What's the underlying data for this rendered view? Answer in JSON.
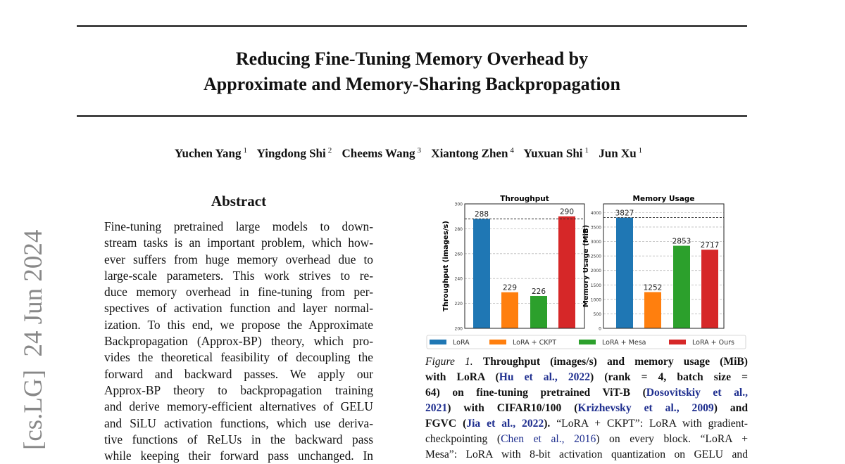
{
  "title_lines": [
    "Reducing Fine-Tuning Memory Overhead by",
    "Approximate and Memory-Sharing Backpropagation"
  ],
  "authors": [
    {
      "name": "Yuchen Yang",
      "aff": "1"
    },
    {
      "name": "Yingdong Shi",
      "aff": "2"
    },
    {
      "name": "Cheems Wang",
      "aff": "3"
    },
    {
      "name": "Xiantong Zhen",
      "aff": "4"
    },
    {
      "name": "Yuxuan Shi",
      "aff": "1"
    },
    {
      "name": "Jun Xu",
      "aff": "1"
    }
  ],
  "arxiv_stamp": "[cs.LG]  24 Jun 2024",
  "abstract": {
    "heading": "Abstract",
    "lines": [
      "Fine-tuning pretrained large models to down-",
      "stream tasks is an important problem, which how-",
      "ever suffers from huge memory overhead due to",
      "large-scale parameters. This work strives to re-",
      "duce memory overhead in fine-tuning from per-",
      "spectives of activation function and layer normal-",
      "ization. To this end, we propose the Approximate",
      "Backpropagation (Approx-BP) theory, which pro-",
      "vides the theoretical feasibility of decoupling the",
      "forward and backward passes. We apply our",
      "Approx-BP theory to backpropagation training",
      "and derive memory-efficient alternatives of GELU",
      "and SiLU activation functions, which use deriva-",
      "tive functions of ReLUs in the backward pass",
      "while keeping their forward pass unchanged. In"
    ]
  },
  "chart_data": [
    {
      "type": "bar",
      "title": "Throughput",
      "ylabel": "Throughput (images/s)",
      "xlabel": "",
      "categories": [
        "LoRA",
        "LoRA + CKPT",
        "LoRA + Mesa",
        "LoRA + Ours"
      ],
      "values": [
        288,
        229,
        226,
        290
      ],
      "ylim": [
        200,
        300
      ],
      "yticks": [
        200,
        220,
        240,
        260,
        280,
        300
      ],
      "reference_line": 288,
      "grid": true
    },
    {
      "type": "bar",
      "title": "Memory Usage",
      "ylabel": "Memory Usage (MiB)",
      "xlabel": "",
      "categories": [
        "LoRA",
        "LoRA + CKPT",
        "LoRA + Mesa",
        "LoRA + Ours"
      ],
      "values": [
        3827,
        1252,
        2853,
        2717
      ],
      "ylim": [
        0,
        4300
      ],
      "yticks": [
        0,
        500,
        1000,
        1500,
        2000,
        2500,
        3000,
        3500,
        4000
      ],
      "reference_line": 3827,
      "grid": true
    }
  ],
  "legend": {
    "placement": "bottom",
    "entries": [
      "LoRA",
      "LoRA + CKPT",
      "LoRA + Mesa",
      "LoRA + Ours"
    ]
  },
  "colors": {
    "LoRA": "#1f77b4",
    "LoRA + CKPT": "#ff7f0e",
    "LoRA + Mesa": "#2ca02c",
    "LoRA + Ours": "#d62728",
    "link": "#1f2f8f"
  },
  "caption": {
    "label": "Figure 1.",
    "l1": "Throughput (images/s) and memory usage (MiB)",
    "l2a": "with LoRA (",
    "l2b": "Hu et al., 2022",
    "l2c": ") (rank = 4, batch size =",
    "l3a": "64) on fine-tuning pretrained ViT-B (",
    "l3b": "Dosovitskiy et al.,",
    "l4a": "2021",
    "l4b": ") with CIFAR10/100 (",
    "l4c": "Krizhevsky et al., 2009",
    "l4d": ") and",
    "l5a": "FGVC (",
    "l5b": "Jia et al., 2022",
    "l5c": ").",
    "l5d": " “LoRA + CKPT”: LoRA with gradient-",
    "l6a": "checkpointing (",
    "l6b": "Chen et al., 2016",
    "l6c": ") on every block. “LoRA +",
    "l7": "Mesa”: LoRA with 8-bit activation quantization on GELU and"
  }
}
